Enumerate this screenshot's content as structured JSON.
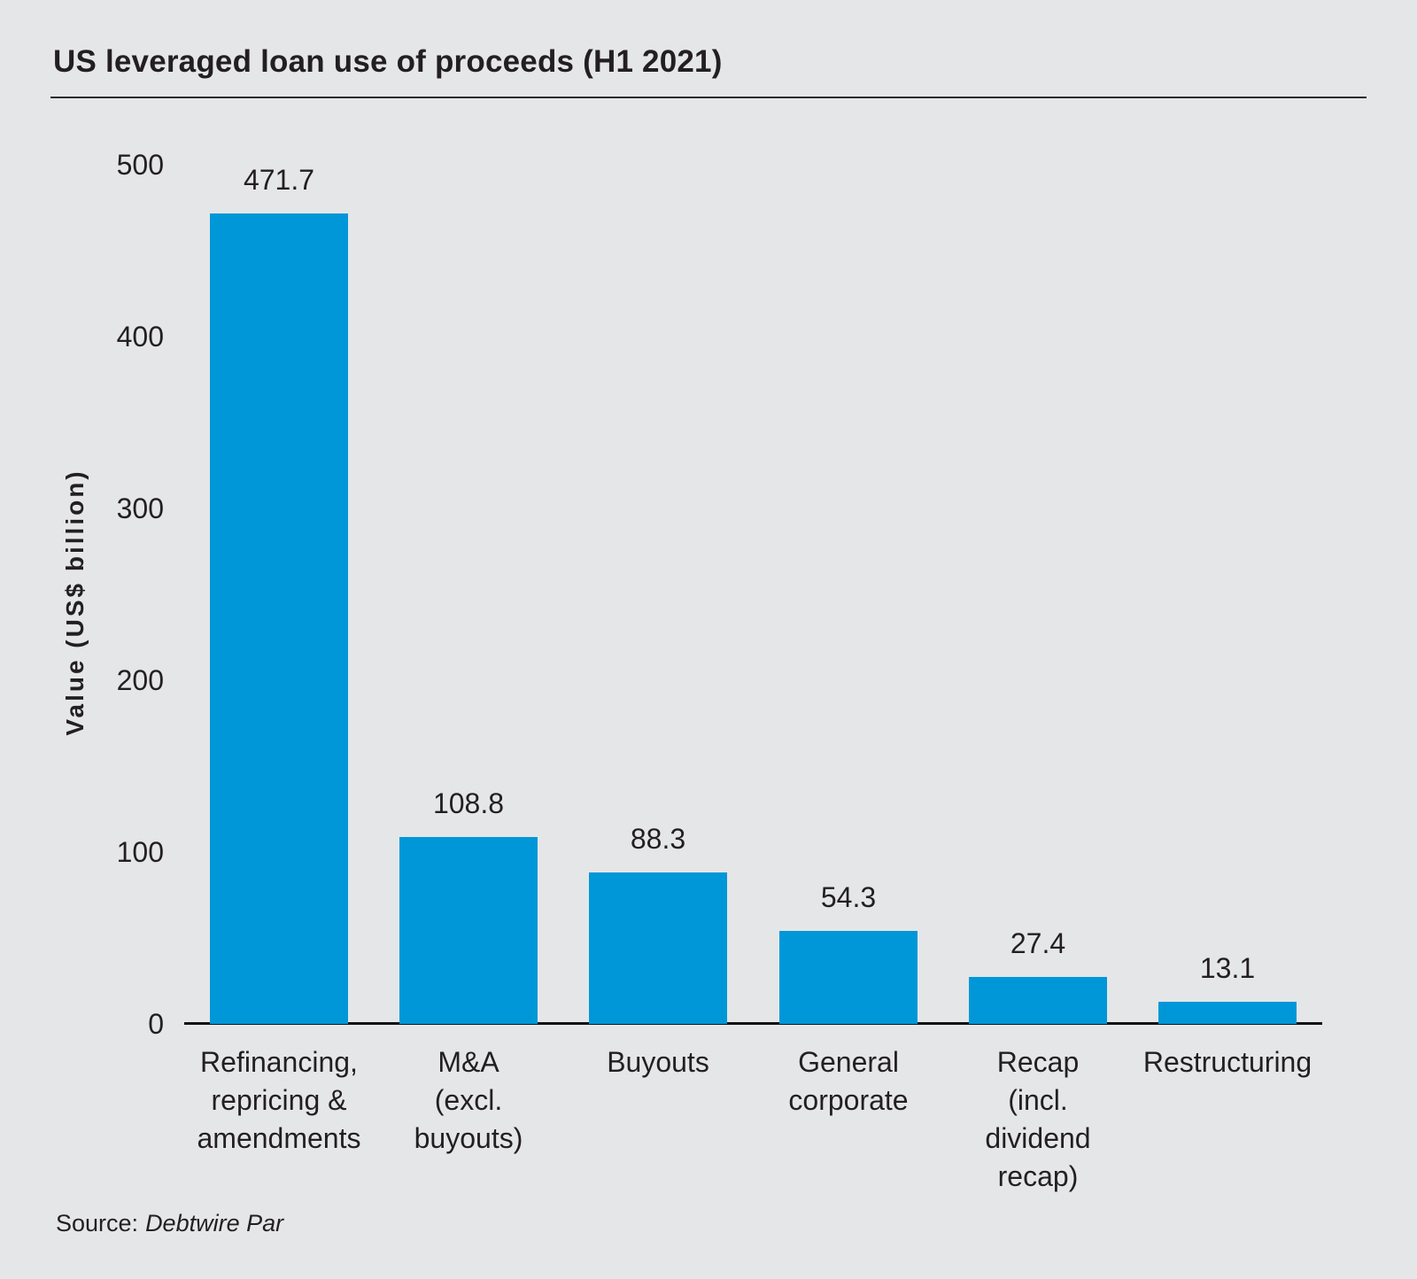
{
  "page": {
    "background_color": "#e5e6e8",
    "text_color": "#231f20",
    "accent_color": "#0097d8"
  },
  "source": {
    "prefix": "Source:",
    "name": "Debtwire Par"
  },
  "chart_data": {
    "type": "bar",
    "title": "US leveraged loan use of proceeds (H1 2021)",
    "categories": [
      "Refinancing,\nrepricing &\namendments",
      "M&A\n(excl.\nbuyouts)",
      "Buyouts",
      "General\ncorporate",
      "Recap\n(incl.\ndividend\nrecap)",
      "Restructuring"
    ],
    "values": [
      471.7,
      108.8,
      88.3,
      54.3,
      27.4,
      13.1
    ],
    "value_labels": [
      "471.7",
      "108.8",
      "88.3",
      "54.3",
      "27.4",
      "13.1"
    ],
    "xlabel": "",
    "ylabel": "Value (US$ billion)",
    "ylim": [
      0,
      500
    ],
    "yticks": [
      0,
      100,
      200,
      300,
      400,
      500
    ],
    "bar_color": "#0097d8",
    "grid": false,
    "legend": "none"
  }
}
